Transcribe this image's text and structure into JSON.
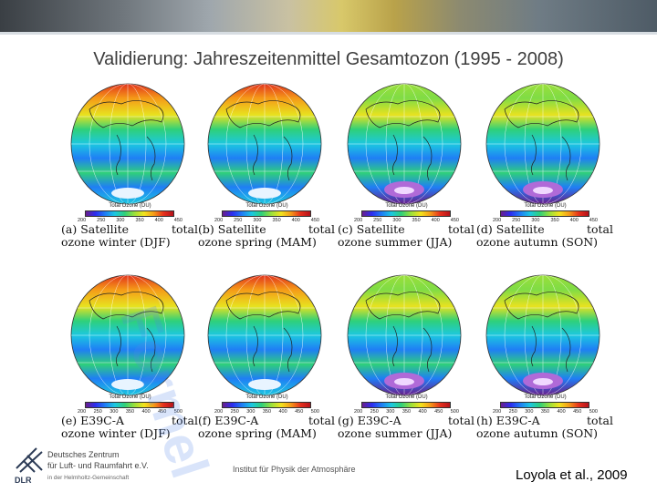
{
  "title": "Validierung: Jahreszeitenmittel Gesamtozon (1995 - 2008)",
  "colorbar_title": "Total Ozone (DU)",
  "panels": [
    {
      "letter": "(a)",
      "source": "Satellite",
      "word": "total",
      "line2": "ozone winter (DJF)",
      "ticks": [
        "200",
        "250",
        "300",
        "350",
        "400",
        "450"
      ]
    },
    {
      "letter": "(b)",
      "source": "Satellite",
      "word": "total",
      "line2": "ozone spring (MAM)",
      "ticks": [
        "200",
        "250",
        "300",
        "350",
        "400",
        "450"
      ]
    },
    {
      "letter": "(c)",
      "source": "Satellite",
      "word": "total",
      "line2": "ozone summer (JJA)",
      "ticks": [
        "200",
        "250",
        "300",
        "350",
        "400",
        "450"
      ]
    },
    {
      "letter": "(d)",
      "source": "Satellite",
      "word": "total",
      "line2": "ozone autumn (SON)",
      "ticks": [
        "200",
        "250",
        "300",
        "350",
        "400",
        "450"
      ]
    },
    {
      "letter": "(e)",
      "source": "E39C-A",
      "word": "total",
      "line2": "ozone winter (DJF)",
      "ticks": [
        "200",
        "250",
        "300",
        "350",
        "400",
        "450",
        "500"
      ]
    },
    {
      "letter": "(f)",
      "source": "E39C-A",
      "word": "total",
      "line2": "ozone spring (MAM)",
      "ticks": [
        "200",
        "250",
        "300",
        "350",
        "400",
        "450",
        "500"
      ]
    },
    {
      "letter": "(g)",
      "source": "E39C-A",
      "word": "total",
      "line2": "ozone summer (JJA)",
      "ticks": [
        "200",
        "250",
        "300",
        "350",
        "400",
        "450",
        "500"
      ]
    },
    {
      "letter": "(h)",
      "source": "E39C-A",
      "word": "total",
      "line2": "ozone autumn (SON)",
      "ticks": [
        "200",
        "250",
        "300",
        "350",
        "400",
        "450",
        "500"
      ]
    }
  ],
  "watermark": "Formel",
  "logo": {
    "initials": "DLR",
    "line1": "Deutsches Zentrum",
    "line2": "für Luft- und Raumfahrt e.V.",
    "line3": "in der Helmholtz-Gemeinschaft"
  },
  "institute": "Institut für Physik der Atmosphäre",
  "citation": "Loyola et al., 2009"
}
